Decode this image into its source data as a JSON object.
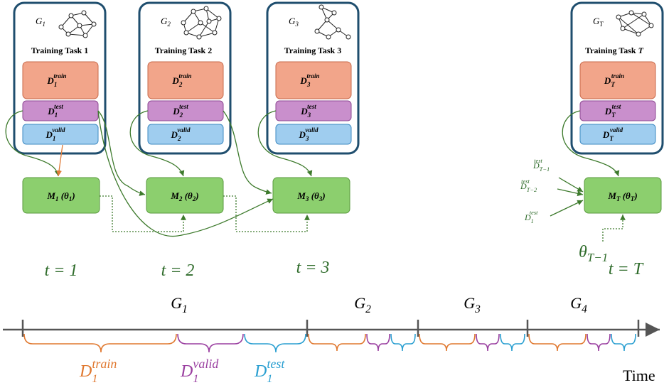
{
  "colors": {
    "card_border": "#1f4e6e",
    "train_fill": "#f2a58a",
    "train_stroke": "#c8694a",
    "test_fill": "#c98fcc",
    "test_stroke": "#8e4a93",
    "valid_fill": "#9fcdef",
    "valid_stroke": "#3e8ac2",
    "model_fill": "#8ccf6e",
    "model_stroke": "#5a9a3f",
    "green_text": "#2e6b2a",
    "arrow_green": "#3d7a2c",
    "arrow_orange": "#e07b39",
    "axis": "#555555",
    "brace_train": "#e0782f",
    "brace_valid": "#9a3fa0",
    "brace_test": "#2a9fd1"
  },
  "tasks": [
    {
      "graph": "G",
      "graph_sub": "1",
      "title": "Training Task 1",
      "train": "D",
      "train_sub": "1",
      "train_sup": "train",
      "test_sub": "1",
      "test_sup": "test",
      "valid_sub": "1",
      "valid_sup": "valid"
    },
    {
      "graph": "G",
      "graph_sub": "2",
      "title": "Training Task 2",
      "train": "D",
      "train_sub": "2",
      "train_sup": "train",
      "test_sub": "2",
      "test_sup": "test",
      "valid_sub": "2",
      "valid_sup": "valid"
    },
    {
      "graph": "G",
      "graph_sub": "3",
      "title": "Training Task 3",
      "train": "D",
      "train_sub": "3",
      "train_sup": "train",
      "test_sub": "3",
      "test_sup": "test",
      "valid_sub": "3",
      "valid_sup": "valid"
    },
    {
      "graph": "G",
      "graph_sub": "T",
      "title": "Training Task",
      "title_italic": "T",
      "train": "D",
      "train_sub": "T",
      "train_sup": "train",
      "test_sub": "T",
      "test_sup": "test",
      "valid_sub": "T",
      "valid_sup": "valid"
    }
  ],
  "models": [
    {
      "label": "M",
      "sub": "1",
      "theta": "θ",
      "theta_sub": "1"
    },
    {
      "label": "M",
      "sub": "2",
      "theta": "θ",
      "theta_sub": "2"
    },
    {
      "label": "M",
      "sub": "3",
      "theta": "θ",
      "theta_sub": "3"
    },
    {
      "label": "M",
      "sub": "T",
      "theta": "θ",
      "theta_sub": "T"
    }
  ],
  "time_labels": [
    "t = 1",
    "t = 2",
    "t = 3",
    "t = T"
  ],
  "theta_prev": {
    "main": "θ",
    "sub": "T−1"
  },
  "side_inputs": [
    {
      "main": "D",
      "sub": "T−1",
      "sup": "test"
    },
    {
      "main": "D",
      "sub": "T−2",
      "sup": "test"
    },
    {
      "main": "D",
      "sub": "1",
      "sup": "test"
    }
  ],
  "timeline": {
    "graphs": [
      {
        "main": "G",
        "sub": "1"
      },
      {
        "main": "G",
        "sub": "2"
      },
      {
        "main": "G",
        "sub": "3"
      },
      {
        "main": "G",
        "sub": "4"
      }
    ],
    "splits": [
      {
        "main": "D",
        "sub": "1",
        "sup": "train"
      },
      {
        "main": "D",
        "sub": "1",
        "sup": "valid"
      },
      {
        "main": "D",
        "sub": "1",
        "sup": "test"
      }
    ],
    "axis_label": "Time"
  }
}
